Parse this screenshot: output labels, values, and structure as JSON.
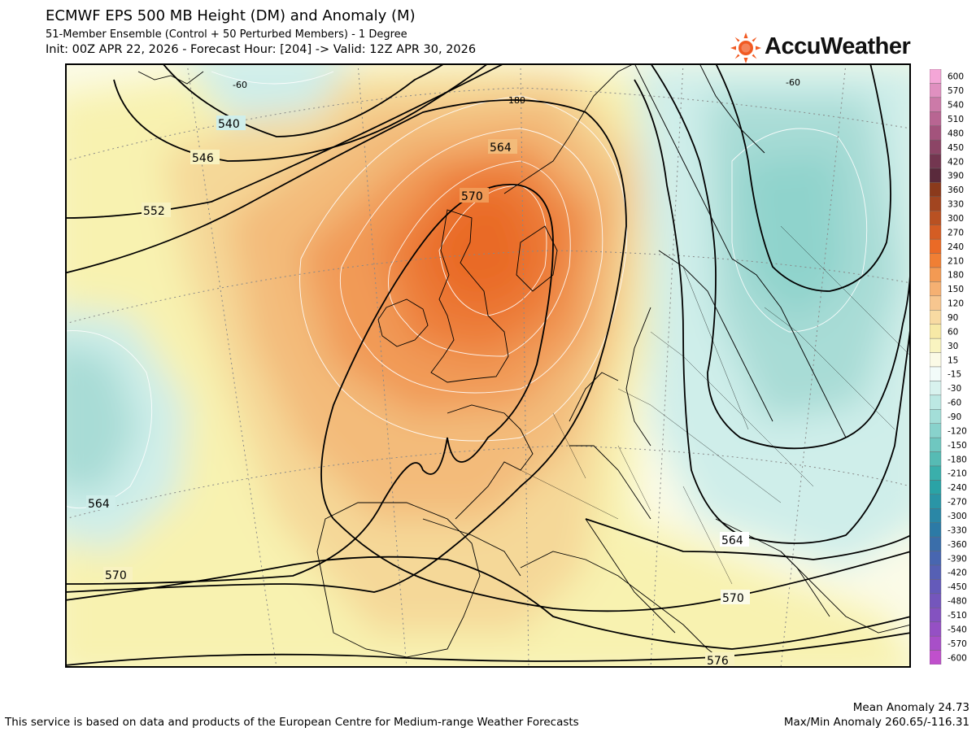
{
  "header": {
    "title": "ECMWF EPS 500 MB Height (DM) and Anomaly (M)",
    "subtitle": "51-Member Ensemble (Control + 50 Perturbed Members) - 1 Degree",
    "init_line": "Init: 00Z APR 22, 2026 - Forecast Hour: [204] -> Valid: 12Z APR 30, 2026"
  },
  "logo": {
    "text": "AccuWeather",
    "icon": "sun-icon",
    "color": "#f15a22"
  },
  "map": {
    "height_contours_dm": [
      {
        "label": "540"
      },
      {
        "label": "546"
      },
      {
        "label": "552"
      },
      {
        "label": "564"
      },
      {
        "label": "570"
      },
      {
        "label": "564"
      },
      {
        "label": "570"
      },
      {
        "label": "576"
      },
      {
        "label": "570"
      },
      {
        "label": "564"
      }
    ],
    "anomaly_labels_m": [
      {
        "label": "-60"
      },
      {
        "label": "180"
      },
      {
        "label": "-60"
      }
    ]
  },
  "colorbar": {
    "labels": [
      "600",
      "570",
      "540",
      "510",
      "480",
      "450",
      "420",
      "390",
      "360",
      "330",
      "300",
      "270",
      "240",
      "210",
      "180",
      "150",
      "120",
      "90",
      "60",
      "30",
      "15",
      "-15",
      "-30",
      "-60",
      "-90",
      "-120",
      "-150",
      "-180",
      "-210",
      "-240",
      "-270",
      "-300",
      "-330",
      "-360",
      "-390",
      "-420",
      "-450",
      "-480",
      "-510",
      "-540",
      "-570",
      "-600"
    ],
    "colors": [
      "#f4a6d7",
      "#e090c0",
      "#cc7aa8",
      "#b86592",
      "#a3537c",
      "#8c4566",
      "#733650",
      "#5a2a3c",
      "#8b3a1c",
      "#a24520",
      "#b95122",
      "#d45d24",
      "#ea6a26",
      "#f07f34",
      "#f39a53",
      "#f5b072",
      "#f7c68f",
      "#f8daa2",
      "#f7e9a6",
      "#f9f4c0",
      "#fbfae6",
      "#f2fbf9",
      "#d8f2ee",
      "#bce8e3",
      "#a3ded8",
      "#88d2cc",
      "#6fc7c0",
      "#56bbb4",
      "#3aafab",
      "#2aa3a6",
      "#2a95a6",
      "#2a87a6",
      "#2c7aa6",
      "#3a6eaa",
      "#4866b0",
      "#5660b4",
      "#645aba",
      "#7456bc",
      "#8452c0",
      "#9550c4",
      "#a84fc8",
      "#c050cc"
    ]
  },
  "footer": {
    "credit": "This service is based on data and products of the European Centre for Medium-range Weather Forecasts",
    "mean_anomaly": "Mean Anomaly 24.73",
    "maxmin_anomaly": "Max/Min Anomaly 260.65/-116.31"
  }
}
